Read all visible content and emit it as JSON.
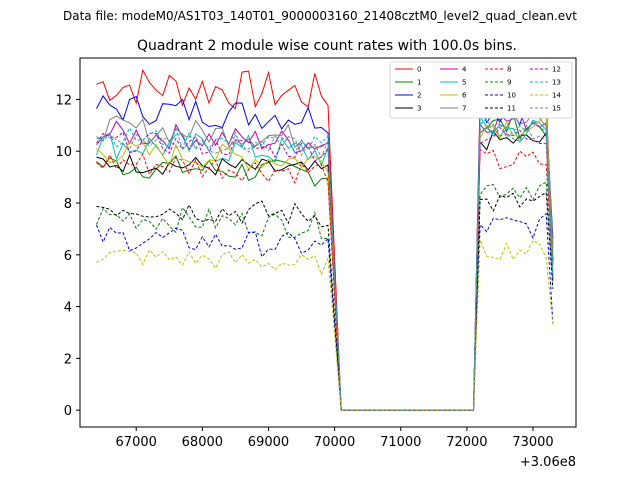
{
  "chart_data": {
    "type": "line",
    "suptitle": "Data file: modeM0/AS1T03_140T01_9000003160_21408cztM0_level2_quad_clean.evt",
    "title": "Quadrant 2 module wise count rates with 100.0s bins.",
    "xlabel": "",
    "ylabel": "",
    "x_offset_label": "+3.06e8",
    "xlim": [
      66150,
      73650
    ],
    "ylim": [
      -0.65,
      13.6
    ],
    "xticks": [
      67000,
      68000,
      69000,
      70000,
      71000,
      72000,
      73000
    ],
    "yticks": [
      0,
      2,
      4,
      6,
      8,
      10,
      12
    ],
    "x_active_1": [
      66400,
      69950
    ],
    "gap": [
      70100,
      72100
    ],
    "x_active_2": [
      72200,
      73300
    ],
    "bin_width": 100,
    "series": [
      {
        "name": "0",
        "color": "#ff0000",
        "dash": false,
        "level": 12.2,
        "level2": 12.0,
        "spread": 0.8
      },
      {
        "name": "1",
        "color": "#008000",
        "dash": false,
        "level": 9.1,
        "level2": 11.0,
        "spread": 0.5
      },
      {
        "name": "2",
        "color": "#0000ff",
        "dash": false,
        "level": 11.3,
        "level2": 11.6,
        "spread": 0.6
      },
      {
        "name": "3",
        "color": "#000000",
        "dash": false,
        "level": 9.2,
        "level2": 10.4,
        "spread": 0.4
      },
      {
        "name": "4",
        "color": "#bf00bf",
        "dash": false,
        "level": 10.3,
        "level2": 11.2,
        "spread": 0.5
      },
      {
        "name": "5",
        "color": "#00bfbf",
        "dash": false,
        "level": 9.9,
        "level2": 10.8,
        "spread": 0.6
      },
      {
        "name": "6",
        "color": "#bfbf00",
        "dash": false,
        "level": 9.6,
        "level2": 11.0,
        "spread": 0.5
      },
      {
        "name": "7",
        "color": "#808080",
        "dash": false,
        "level": 10.5,
        "level2": 11.1,
        "spread": 0.5
      },
      {
        "name": "8",
        "color": "#ff0000",
        "dash": true,
        "level": 9.2,
        "level2": 9.6,
        "spread": 0.5
      },
      {
        "name": "9",
        "color": "#008000",
        "dash": true,
        "level": 7.1,
        "level2": 8.6,
        "spread": 0.5
      },
      {
        "name": "10",
        "color": "#0000ff",
        "dash": true,
        "level": 6.3,
        "level2": 7.1,
        "spread": 0.5
      },
      {
        "name": "11",
        "color": "#000000",
        "dash": true,
        "level": 7.5,
        "level2": 8.0,
        "spread": 0.5
      },
      {
        "name": "12",
        "color": "#bf00bf",
        "dash": true,
        "level": 10.0,
        "level2": 10.6,
        "spread": 0.4
      },
      {
        "name": "13",
        "color": "#00bfbf",
        "dash": true,
        "level": 10.2,
        "level2": 10.9,
        "spread": 0.4
      },
      {
        "name": "14",
        "color": "#bfbf00",
        "dash": true,
        "level": 5.6,
        "level2": 6.2,
        "spread": 0.4
      },
      {
        "name": "15",
        "color": "#808080",
        "dash": true,
        "level": 10.1,
        "level2": 10.7,
        "spread": 0.4
      }
    ],
    "legend_loc": "upper right"
  }
}
